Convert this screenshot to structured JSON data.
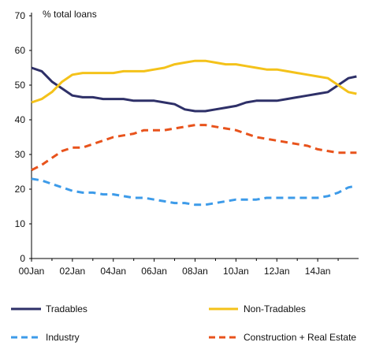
{
  "chart_data": {
    "type": "line",
    "ylabel": "% total loans",
    "ylim": [
      0,
      70
    ],
    "yticks": [
      0,
      10,
      20,
      30,
      40,
      50,
      60,
      70
    ],
    "xticks": [
      "00Jan",
      "02Jan",
      "04Jan",
      "06Jan",
      "08Jan",
      "10Jan",
      "12Jan",
      "14Jan"
    ],
    "xlim": [
      2000.0,
      2016.0
    ],
    "grid": false,
    "legend_position": "bottom",
    "series": [
      {
        "name": "Tradables",
        "color": "#2e3068",
        "dash": "solid",
        "x": [
          2000.0,
          2000.5,
          2001.0,
          2001.5,
          2002.0,
          2002.5,
          2003.0,
          2003.5,
          2004.0,
          2004.5,
          2005.0,
          2005.5,
          2006.0,
          2006.5,
          2007.0,
          2007.5,
          2008.0,
          2008.5,
          2009.0,
          2009.5,
          2010.0,
          2010.5,
          2011.0,
          2011.5,
          2012.0,
          2012.5,
          2013.0,
          2013.5,
          2014.0,
          2014.5,
          2015.0,
          2015.5,
          2015.9
        ],
        "values": [
          55,
          54,
          51,
          49,
          47,
          46.5,
          46.5,
          46,
          46,
          46,
          45.5,
          45.5,
          45.5,
          45,
          44.5,
          43,
          42.5,
          42.5,
          43,
          43.5,
          44,
          45,
          45.5,
          45.5,
          45.5,
          46,
          46.5,
          47,
          47.5,
          48,
          50,
          52,
          52.5
        ]
      },
      {
        "name": "Non-Tradables",
        "color": "#f4c21a",
        "dash": "solid",
        "x": [
          2000.0,
          2000.5,
          2001.0,
          2001.5,
          2002.0,
          2002.5,
          2003.0,
          2003.5,
          2004.0,
          2004.5,
          2005.0,
          2005.5,
          2006.0,
          2006.5,
          2007.0,
          2007.5,
          2008.0,
          2008.5,
          2009.0,
          2009.5,
          2010.0,
          2010.5,
          2011.0,
          2011.5,
          2012.0,
          2012.5,
          2013.0,
          2013.5,
          2014.0,
          2014.5,
          2015.0,
          2015.5,
          2015.9
        ],
        "values": [
          45,
          46,
          48,
          51,
          53,
          53.5,
          53.5,
          53.5,
          53.5,
          54,
          54,
          54,
          54.5,
          55,
          56,
          56.5,
          57,
          57,
          56.5,
          56,
          56,
          55.5,
          55,
          54.5,
          54.5,
          54,
          53.5,
          53,
          52.5,
          52,
          50,
          48,
          47.5
        ]
      },
      {
        "name": "Industry",
        "color": "#3d9be9",
        "dash": "dashed",
        "x": [
          2000.0,
          2000.5,
          2001.0,
          2001.5,
          2002.0,
          2002.5,
          2003.0,
          2003.5,
          2004.0,
          2004.5,
          2005.0,
          2005.5,
          2006.0,
          2006.5,
          2007.0,
          2007.5,
          2008.0,
          2008.5,
          2009.0,
          2009.5,
          2010.0,
          2010.5,
          2011.0,
          2011.5,
          2012.0,
          2012.5,
          2013.0,
          2013.5,
          2014.0,
          2014.5,
          2015.0,
          2015.5,
          2015.9
        ],
        "values": [
          23,
          22.5,
          21.5,
          20.5,
          19.5,
          19,
          19,
          18.5,
          18.5,
          18,
          17.5,
          17.5,
          17,
          16.5,
          16,
          16,
          15.5,
          15.5,
          16,
          16.5,
          17,
          17,
          17,
          17.5,
          17.5,
          17.5,
          17.5,
          17.5,
          17.5,
          18,
          19,
          20.5,
          21
        ]
      },
      {
        "name": "Construction + Real Estate",
        "color": "#e8531c",
        "dash": "dashed",
        "x": [
          2000.0,
          2000.5,
          2001.0,
          2001.5,
          2002.0,
          2002.5,
          2003.0,
          2003.5,
          2004.0,
          2004.5,
          2005.0,
          2005.5,
          2006.0,
          2006.5,
          2007.0,
          2007.5,
          2008.0,
          2008.5,
          2009.0,
          2009.5,
          2010.0,
          2010.5,
          2011.0,
          2011.5,
          2012.0,
          2012.5,
          2013.0,
          2013.5,
          2014.0,
          2014.5,
          2015.0,
          2015.5,
          2015.9
        ],
        "values": [
          25.5,
          27,
          29,
          31,
          32,
          32,
          33,
          34,
          35,
          35.5,
          36,
          37,
          37,
          37,
          37.5,
          38,
          38.5,
          38.5,
          38,
          37.5,
          37,
          36,
          35,
          34.5,
          34,
          33.5,
          33,
          32.5,
          31.5,
          31,
          30.5,
          30.5,
          30.5
        ]
      }
    ]
  }
}
